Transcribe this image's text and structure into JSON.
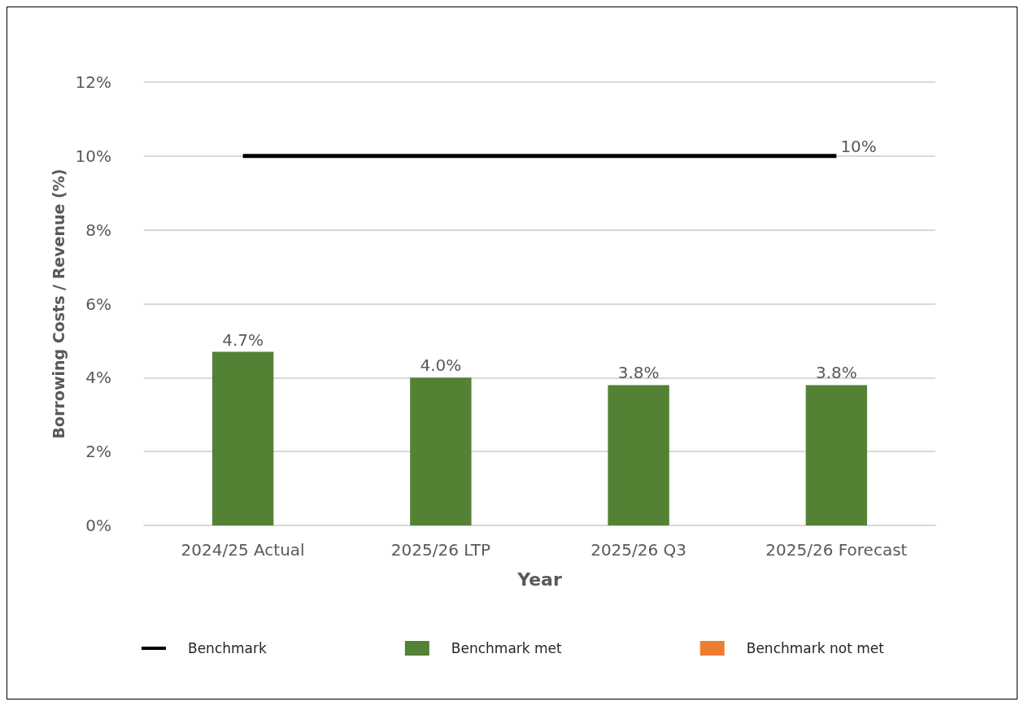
{
  "chart_data": {
    "type": "bar",
    "xlabel": "Year",
    "ylabel": "Borrowing Costs / Revenue (%)",
    "categories": [
      "2024/25 Actual",
      "2025/26 LTP",
      "2025/26 Q3",
      "2025/26 Forecast"
    ],
    "series": [
      {
        "name": "Benchmark",
        "type": "line",
        "color": "#000000",
        "values": [
          10,
          10,
          10,
          10
        ],
        "value_labels": [
          null,
          null,
          null,
          "10%"
        ]
      },
      {
        "name": "Benchmark met",
        "color": "#548235",
        "values": [
          4.7,
          4.0,
          3.8,
          3.8
        ],
        "value_labels": [
          "4.7%",
          "4.0%",
          "3.8%",
          "3.8%"
        ]
      },
      {
        "name": "Benchmark not met",
        "color": "#ed7d31",
        "values": [
          null,
          null,
          null,
          null
        ]
      }
    ],
    "ylim": [
      0,
      12
    ],
    "yticks": [
      {
        "value": 0,
        "label": "0%"
      },
      {
        "value": 2,
        "label": "2%"
      },
      {
        "value": 4,
        "label": "4%"
      },
      {
        "value": 6,
        "label": "6%"
      },
      {
        "value": 8,
        "label": "8%"
      },
      {
        "value": 10,
        "label": "10%"
      },
      {
        "value": 12,
        "label": "12%"
      }
    ],
    "grid": "y",
    "legend": "bottom"
  }
}
